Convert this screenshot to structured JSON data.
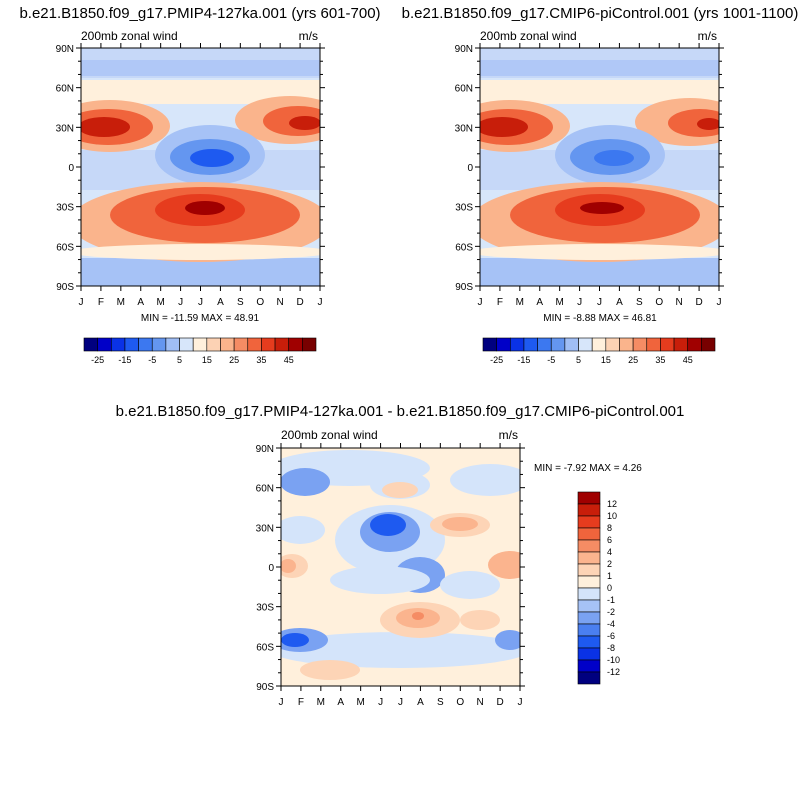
{
  "chart_data": [
    {
      "type": "heatmap",
      "title": "b.e21.B1850.f09_g17.PMIP4-127ka.001 (yrs 601-700)",
      "subtitle_left": "200mb zonal wind",
      "subtitle_right": "m/s",
      "x_ticks": [
        "J",
        "F",
        "M",
        "A",
        "M",
        "J",
        "J",
        "A",
        "S",
        "O",
        "N",
        "D",
        "J"
      ],
      "y_ticks": [
        "90N",
        "60N",
        "30N",
        "0",
        "30S",
        "60S",
        "90S"
      ],
      "stats": "MIN = -11.59 MAX =  48.91",
      "colorbar": {
        "orientation": "horizontal",
        "colors": [
          "#00007f",
          "#0000c8",
          "#0a32e6",
          "#1e5af0",
          "#3c78f0",
          "#6496f0",
          "#a0bef5",
          "#d7e6fa",
          "#fff0dc",
          "#fcd2b4",
          "#fab48c",
          "#f58c64",
          "#f0643c",
          "#e63c1e",
          "#c81e0a",
          "#a00000",
          "#780000"
        ],
        "labels": [
          "-25",
          "-15",
          "-5",
          "5",
          "15",
          "25",
          "35",
          "45"
        ]
      },
      "features": [
        {
          "month": 1.2,
          "lat": 28,
          "value": 45
        },
        {
          "month": 11.8,
          "lat": 30,
          "value": 38
        },
        {
          "month": 6.7,
          "lat": 5,
          "value": -8
        },
        {
          "month": 7.0,
          "lat": -30,
          "value": 48
        }
      ]
    },
    {
      "type": "heatmap",
      "title": "b.e21.B1850.f09_g17.CMIP6-piControl.001 (yrs 1001-1100)",
      "subtitle_left": "200mb zonal wind",
      "subtitle_right": "m/s",
      "x_ticks": [
        "J",
        "F",
        "M",
        "A",
        "M",
        "J",
        "J",
        "A",
        "S",
        "O",
        "N",
        "D",
        "J"
      ],
      "y_ticks": [
        "90N",
        "60N",
        "30N",
        "0",
        "30S",
        "60S",
        "90S"
      ],
      "stats": "MIN = -8.88 MAX =  46.81",
      "colorbar": {
        "orientation": "horizontal",
        "colors": [
          "#00007f",
          "#0000c8",
          "#0a32e6",
          "#1e5af0",
          "#3c78f0",
          "#6496f0",
          "#a0bef5",
          "#d7e6fa",
          "#fff0dc",
          "#fcd2b4",
          "#fab48c",
          "#f58c64",
          "#f0643c",
          "#e63c1e",
          "#c81e0a",
          "#a00000",
          "#780000"
        ],
        "labels": [
          "-25",
          "-15",
          "-5",
          "5",
          "15",
          "25",
          "35",
          "45"
        ]
      },
      "features": [
        {
          "month": 1.2,
          "lat": 30,
          "value": 46
        },
        {
          "month": 12.0,
          "lat": 32,
          "value": 40
        },
        {
          "month": 6.7,
          "lat": 5,
          "value": -6
        },
        {
          "month": 7.0,
          "lat": -30,
          "value": 46
        }
      ]
    },
    {
      "type": "heatmap",
      "title": "b.e21.B1850.f09_g17.PMIP4-127ka.001 - b.e21.B1850.f09_g17.CMIP6-piControl.001",
      "subtitle_left": "200mb zonal wind",
      "subtitle_right": "m/s",
      "x_ticks": [
        "J",
        "F",
        "M",
        "A",
        "M",
        "J",
        "J",
        "A",
        "S",
        "O",
        "N",
        "D",
        "J"
      ],
      "y_ticks": [
        "90N",
        "60N",
        "30N",
        "0",
        "30S",
        "60S",
        "90S"
      ],
      "stats": "MIN = -7.92 MAX =   4.26",
      "colorbar": {
        "orientation": "vertical",
        "colors": [
          "#00007f",
          "#0000c8",
          "#0a32e6",
          "#1e5af0",
          "#4a7ff0",
          "#7aa2f2",
          "#a6c2f6",
          "#d4e4fa",
          "#fff0dc",
          "#fdd4b6",
          "#fbb48e",
          "#f58c64",
          "#f0643c",
          "#e63c1e",
          "#c81e0a",
          "#a00000"
        ],
        "labels": [
          "12",
          "10",
          "8",
          "6",
          "4",
          "2",
          "1",
          "0",
          "-1",
          "-2",
          "-4",
          "-6",
          "-8",
          "-10",
          "-12"
        ]
      },
      "features": [
        {
          "month": 5.5,
          "lat": 35,
          "value": -6
        },
        {
          "month": 7.2,
          "lat": 5,
          "value": -4
        },
        {
          "month": 1.0,
          "lat": -55,
          "value": -5
        },
        {
          "month": 12.0,
          "lat": -55,
          "value": -4
        },
        {
          "month": 7.6,
          "lat": -38,
          "value": 4
        },
        {
          "month": 9.0,
          "lat": 30,
          "value": 2
        },
        {
          "month": 12.2,
          "lat": 0,
          "value": 2
        },
        {
          "month": 11.2,
          "lat": 30,
          "value": 2
        },
        {
          "month": 1.0,
          "lat": 0,
          "value": 2
        },
        {
          "month": 2.6,
          "lat": 64,
          "value": -3
        },
        {
          "month": 0.8,
          "lat": 72,
          "value": -2
        }
      ]
    }
  ]
}
